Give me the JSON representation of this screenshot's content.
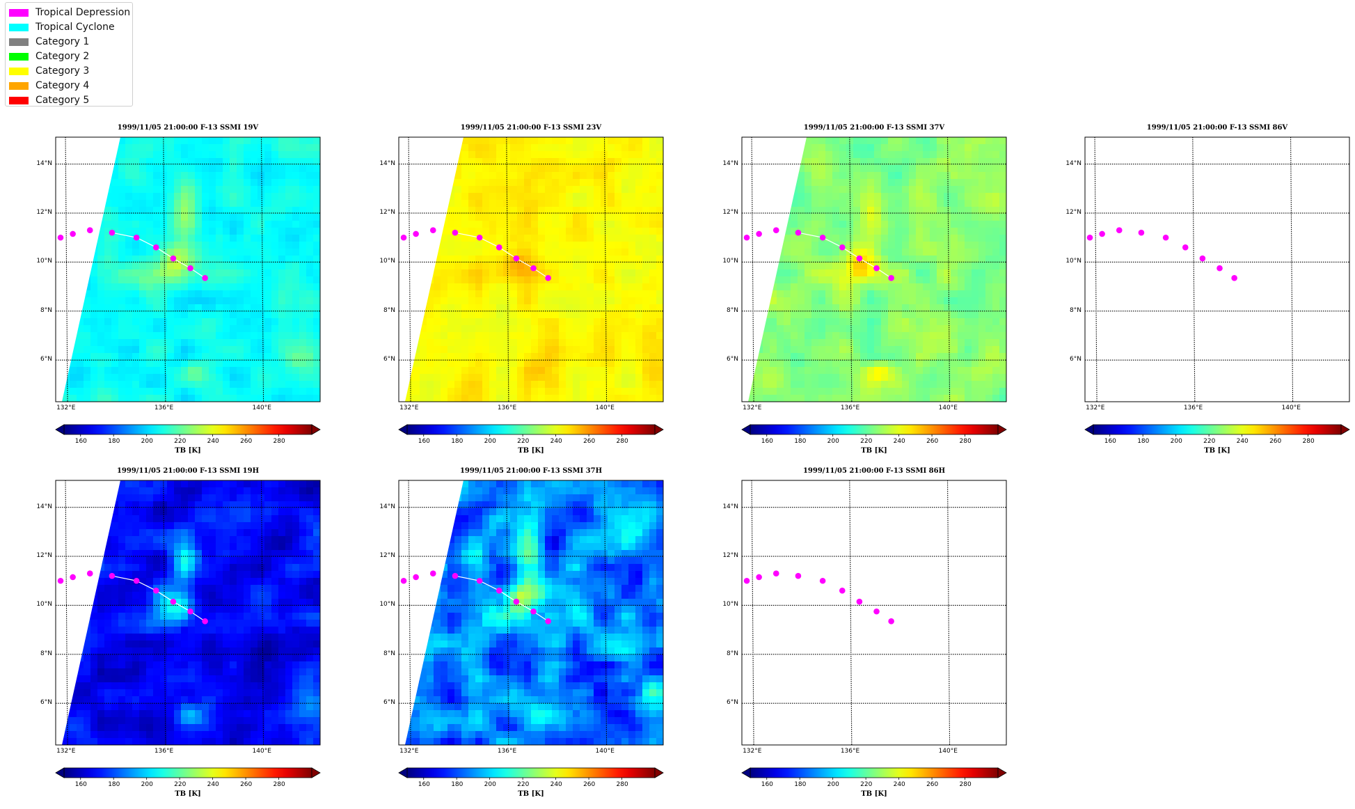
{
  "legend": {
    "items": [
      {
        "label": "Tropical Depression",
        "color": "#ff00ff"
      },
      {
        "label": "Tropical Cyclone",
        "color": "#00ffff"
      },
      {
        "label": "Category 1",
        "color": "#808080"
      },
      {
        "label": "Category 2",
        "color": "#00ff00"
      },
      {
        "label": "Category 3",
        "color": "#ffff00"
      },
      {
        "label": "Category 4",
        "color": "#ffa500"
      },
      {
        "label": "Category 5",
        "color": "#ff0000"
      }
    ]
  },
  "chart_data": [
    {
      "type": "heatmap",
      "title": "1999/11/05 21:00:00  F-13 SSMI 19V",
      "channel": "19V",
      "field": "tb19v",
      "has_data": true,
      "xticks": [
        "132°E",
        "136°E",
        "140°E"
      ],
      "yticks": [
        "6°N",
        "8°N",
        "10°N",
        "12°N",
        "14°N"
      ],
      "xlim": [
        131.6,
        142.4
      ],
      "ylim": [
        4.3,
        15.1
      ],
      "colorbar": {
        "label": "TB [K]",
        "ticks": [
          "160",
          "180",
          "200",
          "220",
          "240",
          "260",
          "280"
        ],
        "range": [
          150,
          300
        ],
        "extend": "both",
        "colormap": "jet"
      },
      "track": {
        "lon": [
          131.8,
          132.3,
          133.0,
          133.9,
          134.9,
          135.7,
          136.4,
          137.1,
          137.7
        ],
        "lat": [
          11.0,
          11.15,
          11.3,
          11.2,
          11.0,
          10.6,
          10.15,
          9.75,
          9.35
        ],
        "category": "Tropical Depression"
      }
    },
    {
      "type": "heatmap",
      "title": "1999/11/05 21:00:00  F-13 SSMI 23V",
      "channel": "23V",
      "field": "tb23v",
      "has_data": true,
      "xticks": [
        "132°E",
        "136°E",
        "140°E"
      ],
      "yticks": [
        "6°N",
        "8°N",
        "10°N",
        "12°N",
        "14°N"
      ],
      "xlim": [
        131.6,
        142.4
      ],
      "ylim": [
        4.3,
        15.1
      ],
      "colorbar": {
        "label": "TB [K]",
        "ticks": [
          "160",
          "180",
          "200",
          "220",
          "240",
          "260",
          "280"
        ],
        "range": [
          150,
          300
        ],
        "extend": "both",
        "colormap": "jet"
      },
      "track": {
        "lon": [
          131.8,
          132.3,
          133.0,
          133.9,
          134.9,
          135.7,
          136.4,
          137.1,
          137.7
        ],
        "lat": [
          11.0,
          11.15,
          11.3,
          11.2,
          11.0,
          10.6,
          10.15,
          9.75,
          9.35
        ],
        "category": "Tropical Depression"
      }
    },
    {
      "type": "heatmap",
      "title": "1999/11/05 21:00:00  F-13 SSMI 37V",
      "channel": "37V",
      "field": "tb37v",
      "has_data": true,
      "xticks": [
        "132°E",
        "136°E",
        "140°E"
      ],
      "yticks": [
        "6°N",
        "8°N",
        "10°N",
        "12°N",
        "14°N"
      ],
      "xlim": [
        131.6,
        142.4
      ],
      "ylim": [
        4.3,
        15.1
      ],
      "colorbar": {
        "label": "TB [K]",
        "ticks": [
          "160",
          "180",
          "200",
          "220",
          "240",
          "260",
          "280"
        ],
        "range": [
          150,
          300
        ],
        "extend": "both",
        "colormap": "jet"
      },
      "track": {
        "lon": [
          131.8,
          132.3,
          133.0,
          133.9,
          134.9,
          135.7,
          136.4,
          137.1,
          137.7
        ],
        "lat": [
          11.0,
          11.15,
          11.3,
          11.2,
          11.0,
          10.6,
          10.15,
          9.75,
          9.35
        ],
        "category": "Tropical Depression"
      }
    },
    {
      "type": "heatmap",
      "title": "1999/11/05 21:00:00  F-13 SSMI 86V",
      "channel": "86V",
      "field": "none",
      "has_data": false,
      "xticks": [
        "132°E",
        "136°E",
        "140°E"
      ],
      "yticks": [
        "6°N",
        "8°N",
        "10°N",
        "12°N",
        "14°N"
      ],
      "xlim": [
        131.6,
        142.4
      ],
      "ylim": [
        4.3,
        15.1
      ],
      "colorbar": {
        "label": "TB [K]",
        "ticks": [
          "160",
          "180",
          "200",
          "220",
          "240",
          "260",
          "280"
        ],
        "range": [
          150,
          300
        ],
        "extend": "both",
        "colormap": "jet"
      },
      "track": {
        "lon": [
          131.8,
          132.3,
          133.0,
          133.9,
          134.9,
          135.7,
          136.4,
          137.1,
          137.7
        ],
        "lat": [
          11.0,
          11.15,
          11.3,
          11.2,
          11.0,
          10.6,
          10.15,
          9.75,
          9.35
        ],
        "category": "Tropical Depression"
      }
    },
    {
      "type": "heatmap",
      "title": "1999/11/05 21:00:00  F-13 SSMI 19H",
      "channel": "19H",
      "field": "tb19h",
      "has_data": true,
      "xticks": [
        "132°E",
        "136°E",
        "140°E"
      ],
      "yticks": [
        "6°N",
        "8°N",
        "10°N",
        "12°N",
        "14°N"
      ],
      "xlim": [
        131.6,
        142.4
      ],
      "ylim": [
        4.3,
        15.1
      ],
      "colorbar": {
        "label": "TB [K]",
        "ticks": [
          "160",
          "180",
          "200",
          "220",
          "240",
          "260",
          "280"
        ],
        "range": [
          150,
          300
        ],
        "extend": "both",
        "colormap": "jet"
      },
      "track": {
        "lon": [
          131.8,
          132.3,
          133.0,
          133.9,
          134.9,
          135.7,
          136.4,
          137.1,
          137.7
        ],
        "lat": [
          11.0,
          11.15,
          11.3,
          11.2,
          11.0,
          10.6,
          10.15,
          9.75,
          9.35
        ],
        "category": "Tropical Depression"
      }
    },
    {
      "type": "heatmap",
      "title": "1999/11/05 21:00:00  F-13 SSMI 37H",
      "channel": "37H",
      "field": "tb37h",
      "has_data": true,
      "xticks": [
        "132°E",
        "136°E",
        "140°E"
      ],
      "yticks": [
        "6°N",
        "8°N",
        "10°N",
        "12°N",
        "14°N"
      ],
      "xlim": [
        131.6,
        142.4
      ],
      "ylim": [
        4.3,
        15.1
      ],
      "colorbar": {
        "label": "TB [K]",
        "ticks": [
          "160",
          "180",
          "200",
          "220",
          "240",
          "260",
          "280"
        ],
        "range": [
          150,
          300
        ],
        "extend": "both",
        "colormap": "jet"
      },
      "track": {
        "lon": [
          131.8,
          132.3,
          133.0,
          133.9,
          134.9,
          135.7,
          136.4,
          137.1,
          137.7
        ],
        "lat": [
          11.0,
          11.15,
          11.3,
          11.2,
          11.0,
          10.6,
          10.15,
          9.75,
          9.35
        ],
        "category": "Tropical Depression"
      }
    },
    {
      "type": "heatmap",
      "title": "1999/11/05 21:00:00  F-13 SSMI 86H",
      "channel": "86H",
      "field": "none",
      "has_data": false,
      "xticks": [
        "132°E",
        "136°E",
        "140°E"
      ],
      "yticks": [
        "6°N",
        "8°N",
        "10°N",
        "12°N",
        "14°N"
      ],
      "xlim": [
        131.6,
        142.4
      ],
      "ylim": [
        4.3,
        15.1
      ],
      "colorbar": {
        "label": "TB [K]",
        "ticks": [
          "160",
          "180",
          "200",
          "220",
          "240",
          "260",
          "280"
        ],
        "range": [
          150,
          300
        ],
        "extend": "both",
        "colormap": "jet"
      },
      "track": {
        "lon": [
          131.8,
          132.3,
          133.0,
          133.9,
          134.9,
          135.7,
          136.4,
          137.1,
          137.7
        ],
        "lat": [
          11.0,
          11.15,
          11.3,
          11.2,
          11.0,
          10.6,
          10.15,
          9.75,
          9.35
        ],
        "category": "Tropical Depression"
      }
    }
  ]
}
